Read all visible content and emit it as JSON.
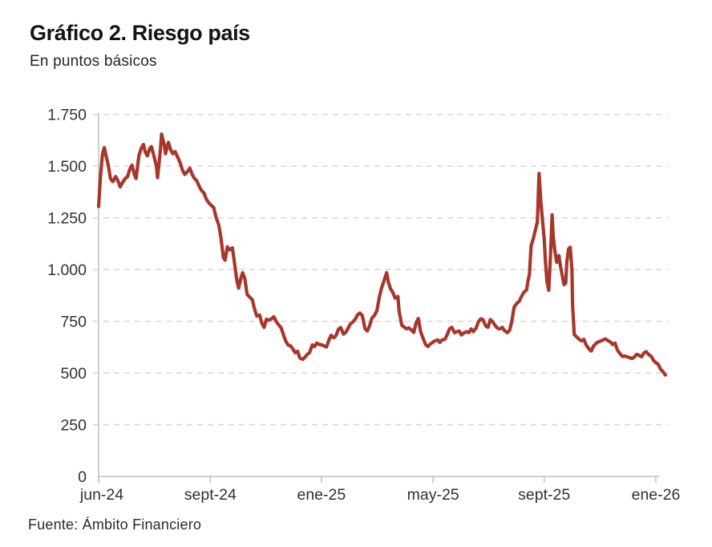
{
  "chart_data": {
    "type": "line",
    "title": "Gráfico 2. Riesgo país",
    "subtitle": "En puntos básicos",
    "source": "Fuente: Ámbito Financiero",
    "unit": "puntos básicos",
    "legend": "none",
    "grid": "horizontal-dashed",
    "ylim": [
      0,
      1750
    ],
    "y_ticks": [
      {
        "value": 0,
        "label": "0"
      },
      {
        "value": 250,
        "label": "250"
      },
      {
        "value": 500,
        "label": "500"
      },
      {
        "value": 750,
        "label": "750"
      },
      {
        "value": 1000,
        "label": "1.000"
      },
      {
        "value": 1250,
        "label": "1.250"
      },
      {
        "value": 1500,
        "label": "1.500"
      },
      {
        "value": 1750,
        "label": "1.750"
      }
    ],
    "x_ticks": [
      {
        "pos": 0.0,
        "label": "jun-24"
      },
      {
        "pos": 0.197,
        "label": "sept-24"
      },
      {
        "pos": 0.393,
        "label": "ene-25"
      },
      {
        "pos": 0.59,
        "label": "may-25"
      },
      {
        "pos": 0.786,
        "label": "sept-25"
      },
      {
        "pos": 0.983,
        "label": "ene-26"
      }
    ],
    "colors": {
      "line": "#a8372b",
      "axis": "#bfbfbf",
      "grid": "#d4d4d4",
      "tick_label": "#30303a"
    },
    "series": [
      {
        "name": "Riesgo país",
        "points": [
          [
            0.0,
            1305
          ],
          [
            0.003,
            1440
          ],
          [
            0.007,
            1560
          ],
          [
            0.01,
            1590
          ],
          [
            0.014,
            1540
          ],
          [
            0.017,
            1505
          ],
          [
            0.021,
            1440
          ],
          [
            0.025,
            1425
          ],
          [
            0.03,
            1450
          ],
          [
            0.034,
            1430
          ],
          [
            0.038,
            1400
          ],
          [
            0.042,
            1420
          ],
          [
            0.047,
            1440
          ],
          [
            0.051,
            1450
          ],
          [
            0.055,
            1485
          ],
          [
            0.059,
            1505
          ],
          [
            0.063,
            1460
          ],
          [
            0.066,
            1440
          ],
          [
            0.071,
            1550
          ],
          [
            0.075,
            1585
          ],
          [
            0.079,
            1605
          ],
          [
            0.082,
            1570
          ],
          [
            0.086,
            1550
          ],
          [
            0.09,
            1585
          ],
          [
            0.093,
            1595
          ],
          [
            0.097,
            1555
          ],
          [
            0.102,
            1500
          ],
          [
            0.104,
            1445
          ],
          [
            0.109,
            1580
          ],
          [
            0.111,
            1655
          ],
          [
            0.116,
            1600
          ],
          [
            0.118,
            1560
          ],
          [
            0.123,
            1615
          ],
          [
            0.127,
            1580
          ],
          [
            0.131,
            1560
          ],
          [
            0.135,
            1570
          ],
          [
            0.14,
            1540
          ],
          [
            0.144,
            1515
          ],
          [
            0.148,
            1480
          ],
          [
            0.152,
            1460
          ],
          [
            0.157,
            1475
          ],
          [
            0.161,
            1490
          ],
          [
            0.165,
            1460
          ],
          [
            0.169,
            1440
          ],
          [
            0.173,
            1430
          ],
          [
            0.178,
            1400
          ],
          [
            0.182,
            1380
          ],
          [
            0.186,
            1370
          ],
          [
            0.19,
            1340
          ],
          [
            0.195,
            1320
          ],
          [
            0.199,
            1310
          ],
          [
            0.203,
            1300
          ],
          [
            0.207,
            1255
          ],
          [
            0.212,
            1215
          ],
          [
            0.216,
            1150
          ],
          [
            0.22,
            1060
          ],
          [
            0.223,
            1045
          ],
          [
            0.227,
            1110
          ],
          [
            0.231,
            1095
          ],
          [
            0.236,
            1105
          ],
          [
            0.24,
            1025
          ],
          [
            0.244,
            945
          ],
          [
            0.247,
            910
          ],
          [
            0.251,
            960
          ],
          [
            0.254,
            985
          ],
          [
            0.258,
            955
          ],
          [
            0.262,
            880
          ],
          [
            0.267,
            865
          ],
          [
            0.271,
            855
          ],
          [
            0.275,
            810
          ],
          [
            0.279,
            775
          ],
          [
            0.284,
            780
          ],
          [
            0.288,
            740
          ],
          [
            0.292,
            720
          ],
          [
            0.296,
            760
          ],
          [
            0.3,
            755
          ],
          [
            0.305,
            762
          ],
          [
            0.309,
            772
          ],
          [
            0.313,
            750
          ],
          [
            0.317,
            735
          ],
          [
            0.322,
            718
          ],
          [
            0.326,
            685
          ],
          [
            0.33,
            655
          ],
          [
            0.334,
            636
          ],
          [
            0.339,
            630
          ],
          [
            0.343,
            615
          ],
          [
            0.347,
            597
          ],
          [
            0.351,
            605
          ],
          [
            0.355,
            572
          ],
          [
            0.36,
            566
          ],
          [
            0.364,
            576
          ],
          [
            0.368,
            590
          ],
          [
            0.372,
            598
          ],
          [
            0.377,
            636
          ],
          [
            0.381,
            628
          ],
          [
            0.385,
            645
          ],
          [
            0.389,
            638
          ],
          [
            0.394,
            636
          ],
          [
            0.398,
            630
          ],
          [
            0.402,
            626
          ],
          [
            0.406,
            657
          ],
          [
            0.41,
            682
          ],
          [
            0.415,
            670
          ],
          [
            0.419,
            682
          ],
          [
            0.423,
            712
          ],
          [
            0.427,
            720
          ],
          [
            0.432,
            688
          ],
          [
            0.436,
            697
          ],
          [
            0.44,
            716
          ],
          [
            0.444,
            737
          ],
          [
            0.449,
            748
          ],
          [
            0.453,
            762
          ],
          [
            0.457,
            782
          ],
          [
            0.461,
            790
          ],
          [
            0.465,
            778
          ],
          [
            0.47,
            714
          ],
          [
            0.474,
            703
          ],
          [
            0.478,
            728
          ],
          [
            0.482,
            765
          ],
          [
            0.487,
            780
          ],
          [
            0.491,
            802
          ],
          [
            0.495,
            865
          ],
          [
            0.499,
            910
          ],
          [
            0.504,
            950
          ],
          [
            0.508,
            985
          ],
          [
            0.511,
            940
          ],
          [
            0.515,
            907
          ],
          [
            0.519,
            890
          ],
          [
            0.523,
            862
          ],
          [
            0.528,
            870
          ],
          [
            0.53,
            800
          ],
          [
            0.535,
            730
          ],
          [
            0.539,
            722
          ],
          [
            0.543,
            714
          ],
          [
            0.547,
            718
          ],
          [
            0.551,
            710
          ],
          [
            0.556,
            696
          ],
          [
            0.56,
            742
          ],
          [
            0.564,
            764
          ],
          [
            0.568,
            700
          ],
          [
            0.573,
            663
          ],
          [
            0.577,
            637
          ],
          [
            0.581,
            628
          ],
          [
            0.585,
            640
          ],
          [
            0.59,
            650
          ],
          [
            0.594,
            656
          ],
          [
            0.598,
            660
          ],
          [
            0.602,
            648
          ],
          [
            0.606,
            660
          ],
          [
            0.611,
            663
          ],
          [
            0.615,
            686
          ],
          [
            0.619,
            713
          ],
          [
            0.623,
            721
          ],
          [
            0.628,
            695
          ],
          [
            0.632,
            700
          ],
          [
            0.636,
            703
          ],
          [
            0.64,
            684
          ],
          [
            0.645,
            695
          ],
          [
            0.649,
            700
          ],
          [
            0.653,
            695
          ],
          [
            0.657,
            713
          ],
          [
            0.661,
            700
          ],
          [
            0.666,
            718
          ],
          [
            0.67,
            748
          ],
          [
            0.674,
            762
          ],
          [
            0.678,
            758
          ],
          [
            0.683,
            727
          ],
          [
            0.687,
            721
          ],
          [
            0.691,
            758
          ],
          [
            0.695,
            748
          ],
          [
            0.7,
            728
          ],
          [
            0.704,
            716
          ],
          [
            0.708,
            713
          ],
          [
            0.712,
            721
          ],
          [
            0.716,
            705
          ],
          [
            0.721,
            695
          ],
          [
            0.725,
            707
          ],
          [
            0.729,
            752
          ],
          [
            0.733,
            818
          ],
          [
            0.738,
            838
          ],
          [
            0.742,
            847
          ],
          [
            0.746,
            870
          ],
          [
            0.75,
            890
          ],
          [
            0.755,
            902
          ],
          [
            0.757,
            940
          ],
          [
            0.76,
            977
          ],
          [
            0.763,
            1115
          ],
          [
            0.767,
            1152
          ],
          [
            0.771,
            1198
          ],
          [
            0.774,
            1230
          ],
          [
            0.777,
            1465
          ],
          [
            0.78,
            1330
          ],
          [
            0.783,
            1237
          ],
          [
            0.786,
            1150
          ],
          [
            0.788,
            1050
          ],
          [
            0.791,
            940
          ],
          [
            0.794,
            900
          ],
          [
            0.797,
            1060
          ],
          [
            0.8,
            1265
          ],
          [
            0.802,
            1160
          ],
          [
            0.805,
            1090
          ],
          [
            0.808,
            1035
          ],
          [
            0.812,
            1068
          ],
          [
            0.815,
            1012
          ],
          [
            0.818,
            970
          ],
          [
            0.821,
            927
          ],
          [
            0.824,
            935
          ],
          [
            0.826,
            1040
          ],
          [
            0.829,
            1100
          ],
          [
            0.832,
            1108
          ],
          [
            0.835,
            1000
          ],
          [
            0.836,
            830
          ],
          [
            0.839,
            686
          ],
          [
            0.843,
            675
          ],
          [
            0.848,
            662
          ],
          [
            0.852,
            655
          ],
          [
            0.856,
            663
          ],
          [
            0.86,
            636
          ],
          [
            0.865,
            616
          ],
          [
            0.869,
            606
          ],
          [
            0.873,
            630
          ],
          [
            0.877,
            642
          ],
          [
            0.881,
            650
          ],
          [
            0.886,
            655
          ],
          [
            0.89,
            660
          ],
          [
            0.894,
            665
          ],
          [
            0.898,
            657
          ],
          [
            0.903,
            650
          ],
          [
            0.907,
            637
          ],
          [
            0.911,
            645
          ],
          [
            0.915,
            612
          ],
          [
            0.92,
            593
          ],
          [
            0.924,
            580
          ],
          [
            0.928,
            582
          ],
          [
            0.932,
            578
          ],
          [
            0.937,
            574
          ],
          [
            0.941,
            570
          ],
          [
            0.945,
            577
          ],
          [
            0.949,
            590
          ],
          [
            0.953,
            586
          ],
          [
            0.958,
            578
          ],
          [
            0.962,
            597
          ],
          [
            0.966,
            603
          ],
          [
            0.97,
            590
          ],
          [
            0.975,
            580
          ],
          [
            0.979,
            560
          ],
          [
            0.983,
            550
          ],
          [
            0.987,
            543
          ],
          [
            0.991,
            520
          ],
          [
            0.996,
            505
          ],
          [
            1.0,
            490
          ]
        ]
      }
    ]
  }
}
